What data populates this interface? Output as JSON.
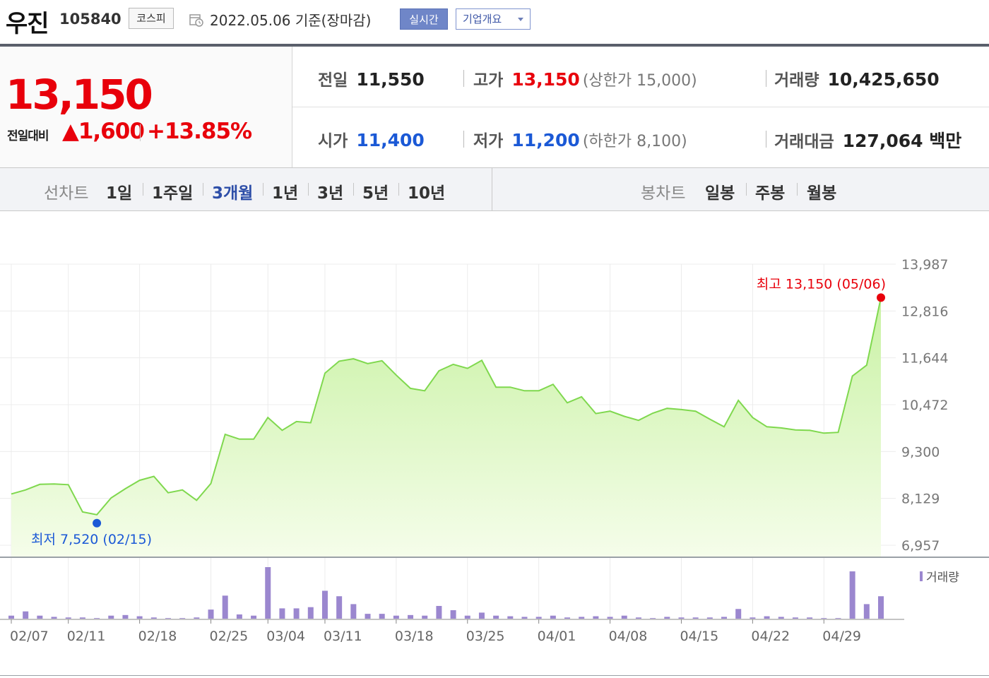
{
  "header": {
    "name": "우진",
    "code": "105840",
    "market": "코스피",
    "date_text": "2022.05.06 기준(장마감)",
    "realtime_label": "실시간",
    "overview_label": "기업개요"
  },
  "summary": {
    "price": "13,150",
    "change_label": "전일대비",
    "change_abs": "▲1,600",
    "change_pct": "+13.85%",
    "prev_label": "전일",
    "prev_value": "11,550",
    "high_label": "고가",
    "high_value": "13,150",
    "upper_limit": "(상한가 15,000)",
    "volume_label": "거래량",
    "volume_value": "10,425,650",
    "open_label": "시가",
    "open_value": "11,400",
    "low_label": "저가",
    "low_value": "11,200",
    "lower_limit": "(하한가 8,100)",
    "amount_label": "거래대금",
    "amount_value": "127,064 백만"
  },
  "tabs": {
    "line_label": "선차트",
    "line_items": [
      "1일",
      "1주일",
      "3개월",
      "1년",
      "3년",
      "5년",
      "10년"
    ],
    "line_active": "3개월",
    "candle_label": "봉차트",
    "candle_items": [
      "일봉",
      "주봉",
      "월봉"
    ]
  },
  "colors": {
    "price_line": "#7fd84e",
    "price_fill_top": "#c9f2a4",
    "volume_bar": "#9b87cf",
    "high_marker": "#e8000b",
    "low_marker": "#1b59d6"
  },
  "chart_data": {
    "type": "area",
    "ylim": [
      6957,
      13987
    ],
    "y_ticks": [
      "13,987",
      "12,816",
      "11,644",
      "10,472",
      "9,300",
      "8,129",
      "6,957"
    ],
    "x_tick_labels": [
      "02/07",
      "02/11",
      "02/18",
      "02/25",
      "03/04",
      "03/11",
      "03/18",
      "03/25",
      "04/01",
      "04/08",
      "04/15",
      "04/22",
      "04/29"
    ],
    "x_tick_index": [
      0,
      4,
      9,
      14,
      18,
      22,
      27,
      32,
      37,
      42,
      47,
      52,
      57
    ],
    "high_label": "최고 13,150 (05/06)",
    "low_label": "최저 7,520 (02/15)",
    "high_index": 61,
    "low_index": 6,
    "volume_legend": "거래량",
    "close": [
      8240,
      8340,
      8480,
      8490,
      8470,
      7790,
      7720,
      8140,
      8370,
      8580,
      8680,
      8270,
      8340,
      8080,
      8500,
      9730,
      9610,
      9610,
      10150,
      9830,
      10050,
      10020,
      11260,
      11560,
      11620,
      11500,
      11570,
      11210,
      10880,
      10820,
      11320,
      11480,
      11380,
      11580,
      10910,
      10910,
      10820,
      10820,
      10980,
      10520,
      10670,
      10250,
      10310,
      10180,
      10080,
      10260,
      10380,
      10350,
      10310,
      10110,
      9920,
      10580,
      10150,
      9920,
      9890,
      9840,
      9830,
      9760,
      9780,
      11190,
      11460,
      13150
    ],
    "volume": [
      5,
      12,
      5,
      3,
      2,
      2,
      1,
      5,
      6,
      4,
      2,
      1,
      1,
      2,
      15,
      38,
      7,
      5,
      85,
      17,
      17,
      19,
      46,
      37,
      24,
      8,
      8,
      5,
      6,
      5,
      21,
      14,
      5,
      10,
      5,
      4,
      3,
      3,
      5,
      2,
      3,
      4,
      3,
      5,
      2,
      1,
      3,
      2,
      2,
      2,
      3,
      16,
      2,
      4,
      3,
      2,
      2,
      1,
      1,
      78,
      24,
      37
    ]
  }
}
